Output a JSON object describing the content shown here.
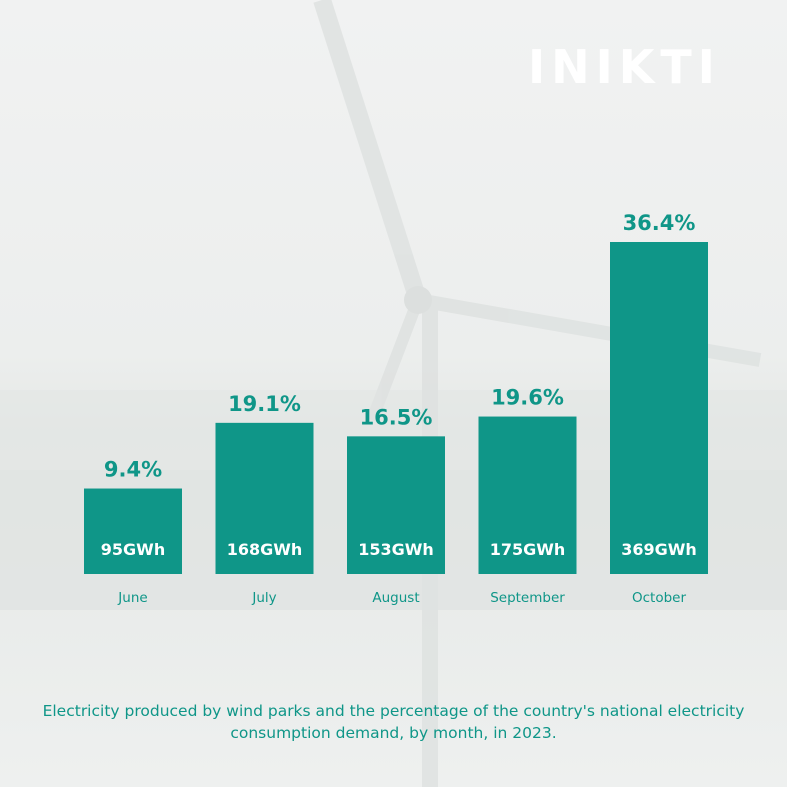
{
  "logo": {
    "text": "INIKTI"
  },
  "colors": {
    "bar": "#0f9688",
    "text": "#0f9688",
    "bar_label": "#ffffff"
  },
  "chart_data": {
    "type": "bar",
    "categories": [
      "June",
      "July",
      "August",
      "September",
      "October"
    ],
    "values": [
      95,
      168,
      153,
      175,
      369
    ],
    "value_labels": [
      "95GWh",
      "168GWh",
      "153GWh",
      "175GWh",
      "369GWh"
    ],
    "percent_labels": [
      "9.4%",
      "19.1%",
      "16.5%",
      "19.6%",
      "36.4%"
    ],
    "percentages": [
      9.4,
      19.1,
      16.5,
      19.6,
      36.4
    ],
    "unit": "GWh",
    "title": "",
    "xlabel": "",
    "ylabel": "",
    "grid": false,
    "caption": "Electricity produced by wind parks and the percentage of the country's national electricity consumption demand, by month, in 2023."
  }
}
